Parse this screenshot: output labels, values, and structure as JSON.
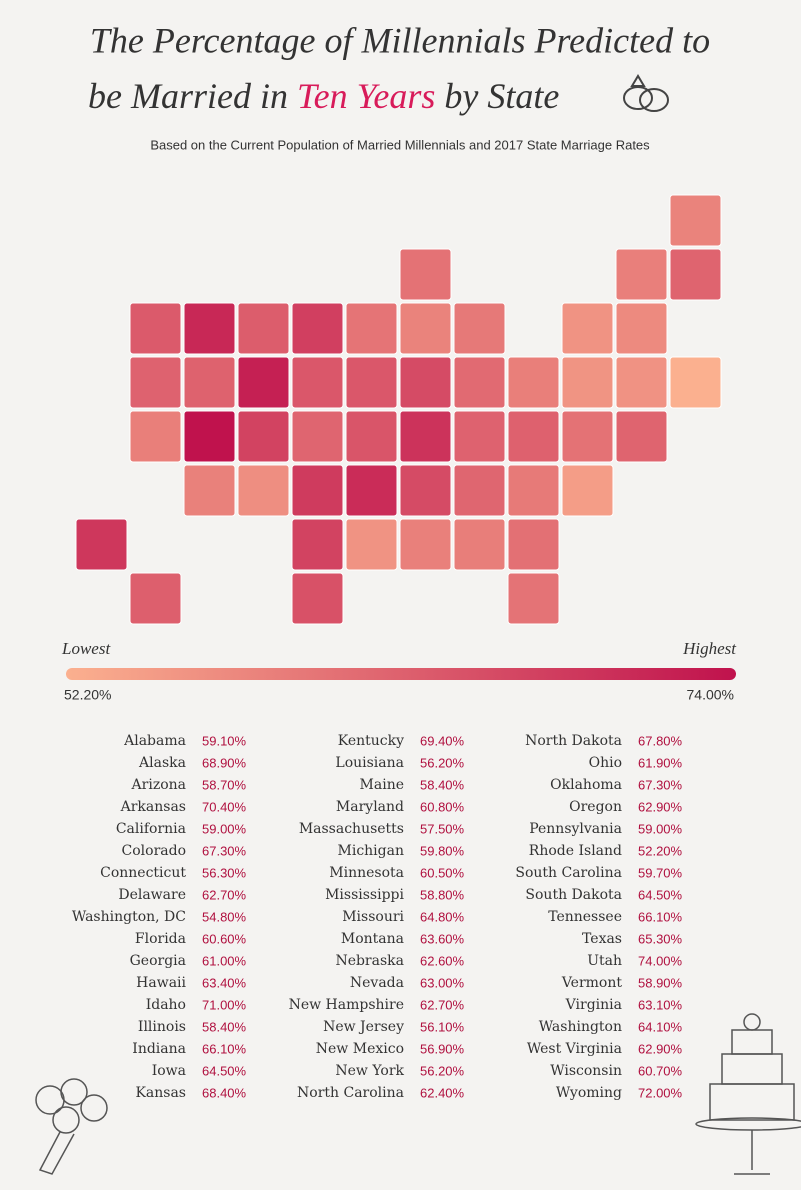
{
  "title": {
    "line1": "The Percentage of Millennials Predicted to",
    "line2_start": "be Married in",
    "line2_highlight": "Ten Years",
    "line2_end": "by State"
  },
  "subtitle": "Based on the Current Population of Married Millennials and 2017 State Marriage Rates",
  "legend": {
    "low_text": "Lowest",
    "high_text": "Highest",
    "min": {
      "value": 52.2,
      "label": "52.20%"
    },
    "max": {
      "value": 74.0,
      "label": "74.00%"
    },
    "colors": [
      "#fbb08f",
      "#c0124d"
    ]
  },
  "states": [
    {
      "name": "Alabama",
      "value": 59.1,
      "label": "59.10%"
    },
    {
      "name": "Alaska",
      "value": 68.9,
      "label": "68.90%"
    },
    {
      "name": "Arizona",
      "value": 58.7,
      "label": "58.70%"
    },
    {
      "name": "Arkansas",
      "value": 70.4,
      "label": "70.40%"
    },
    {
      "name": "California",
      "value": 59.0,
      "label": "59.00%"
    },
    {
      "name": "Colorado",
      "value": 67.3,
      "label": "67.30%"
    },
    {
      "name": "Connecticut",
      "value": 56.3,
      "label": "56.30%"
    },
    {
      "name": "Delaware",
      "value": 62.7,
      "label": "62.70%"
    },
    {
      "name": "Washington, DC",
      "value": 54.8,
      "label": "54.80%"
    },
    {
      "name": "Florida",
      "value": 60.6,
      "label": "60.60%"
    },
    {
      "name": "Georgia",
      "value": 61.0,
      "label": "61.00%"
    },
    {
      "name": "Hawaii",
      "value": 63.4,
      "label": "63.40%"
    },
    {
      "name": "Idaho",
      "value": 71.0,
      "label": "71.00%"
    },
    {
      "name": "Illinois",
      "value": 58.4,
      "label": "58.40%"
    },
    {
      "name": "Indiana",
      "value": 66.1,
      "label": "66.10%"
    },
    {
      "name": "Iowa",
      "value": 64.5,
      "label": "64.50%"
    },
    {
      "name": "Kansas",
      "value": 68.4,
      "label": "68.40%"
    },
    {
      "name": "Kentucky",
      "value": 69.4,
      "label": "69.40%"
    },
    {
      "name": "Louisiana",
      "value": 56.2,
      "label": "56.20%"
    },
    {
      "name": "Maine",
      "value": 58.4,
      "label": "58.40%"
    },
    {
      "name": "Maryland",
      "value": 60.8,
      "label": "60.80%"
    },
    {
      "name": "Massachusetts",
      "value": 57.5,
      "label": "57.50%"
    },
    {
      "name": "Michigan",
      "value": 59.8,
      "label": "59.80%"
    },
    {
      "name": "Minnesota",
      "value": 60.5,
      "label": "60.50%"
    },
    {
      "name": "Mississippi",
      "value": 58.8,
      "label": "58.80%"
    },
    {
      "name": "Missouri",
      "value": 64.8,
      "label": "64.80%"
    },
    {
      "name": "Montana",
      "value": 63.6,
      "label": "63.60%"
    },
    {
      "name": "Nebraska",
      "value": 62.6,
      "label": "62.60%"
    },
    {
      "name": "Nevada",
      "value": 63.0,
      "label": "63.00%"
    },
    {
      "name": "New Hampshire",
      "value": 62.7,
      "label": "62.70%"
    },
    {
      "name": "New Jersey",
      "value": 56.1,
      "label": "56.10%"
    },
    {
      "name": "New Mexico",
      "value": 56.9,
      "label": "56.90%"
    },
    {
      "name": "New York",
      "value": 56.2,
      "label": "56.20%"
    },
    {
      "name": "North Carolina",
      "value": 62.4,
      "label": "62.40%"
    },
    {
      "name": "North Dakota",
      "value": 67.8,
      "label": "67.80%"
    },
    {
      "name": "Ohio",
      "value": 61.9,
      "label": "61.90%"
    },
    {
      "name": "Oklahoma",
      "value": 67.3,
      "label": "67.30%"
    },
    {
      "name": "Oregon",
      "value": 62.9,
      "label": "62.90%"
    },
    {
      "name": "Pennsylvania",
      "value": 59.0,
      "label": "59.00%"
    },
    {
      "name": "Rhode Island",
      "value": 52.2,
      "label": "52.20%"
    },
    {
      "name": "South Carolina",
      "value": 59.7,
      "label": "59.70%"
    },
    {
      "name": "South Dakota",
      "value": 64.5,
      "label": "64.50%"
    },
    {
      "name": "Tennessee",
      "value": 66.1,
      "label": "66.10%"
    },
    {
      "name": "Texas",
      "value": 65.3,
      "label": "65.30%"
    },
    {
      "name": "Utah",
      "value": 74.0,
      "label": "74.00%"
    },
    {
      "name": "Vermont",
      "value": 58.9,
      "label": "58.90%"
    },
    {
      "name": "Virginia",
      "value": 63.1,
      "label": "63.10%"
    },
    {
      "name": "Washington",
      "value": 64.1,
      "label": "64.10%"
    },
    {
      "name": "West Virginia",
      "value": 62.9,
      "label": "62.90%"
    },
    {
      "name": "Wisconsin",
      "value": 60.7,
      "label": "60.70%"
    },
    {
      "name": "Wyoming",
      "value": 72.0,
      "label": "72.00%"
    }
  ]
}
